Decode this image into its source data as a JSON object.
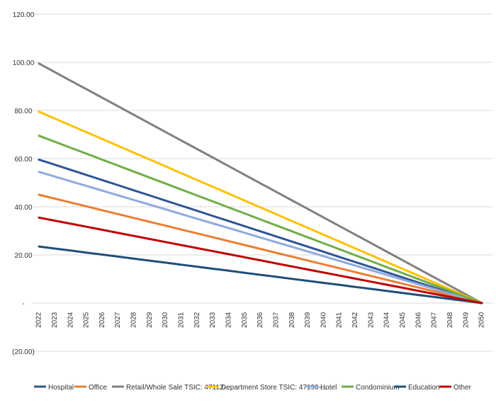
{
  "chart_data": {
    "type": "line",
    "x": [
      "2022",
      "2023",
      "2024",
      "2025",
      "2026",
      "2027",
      "2028",
      "2029",
      "2030",
      "2031",
      "2032",
      "2033",
      "2034",
      "2035",
      "2036",
      "2037",
      "2038",
      "2039",
      "2040",
      "2041",
      "2042",
      "2043",
      "2044",
      "2045",
      "2046",
      "2047",
      "2048",
      "2049",
      "2050"
    ],
    "ylim": [
      -20,
      120
    ],
    "y_ticks": [
      -20,
      0,
      20,
      40,
      60,
      80,
      100,
      120
    ],
    "y_tick_labels": [
      "(20.00)",
      "-",
      "20.00",
      "40.00",
      "60.00",
      "80.00",
      "100.00",
      "120.00"
    ],
    "grid": true,
    "legend_position": "bottom",
    "series": [
      {
        "name": "Hospital",
        "color": "#2E5597",
        "start": 59.6,
        "end": 0
      },
      {
        "name": "Office",
        "color": "#ED7D31",
        "start": 45.0,
        "end": 0
      },
      {
        "name": "Retail/Whole Sale TSIC: 47112-...",
        "color": "#808080",
        "start": 99.5,
        "end": 0
      },
      {
        "name": "Department Store TSIC: 47190-...",
        "color": "#FFC000",
        "start": 79.5,
        "end": 0
      },
      {
        "name": "Hotel",
        "color": "#8FAADC",
        "start": 54.5,
        "end": 0
      },
      {
        "name": "Condominium",
        "color": "#70AD47",
        "start": 69.5,
        "end": 0
      },
      {
        "name": "Education",
        "color": "#1F4E79",
        "start": 23.5,
        "end": 0
      },
      {
        "name": "Other",
        "color": "#C00000",
        "start": 35.5,
        "end": 0
      }
    ]
  }
}
